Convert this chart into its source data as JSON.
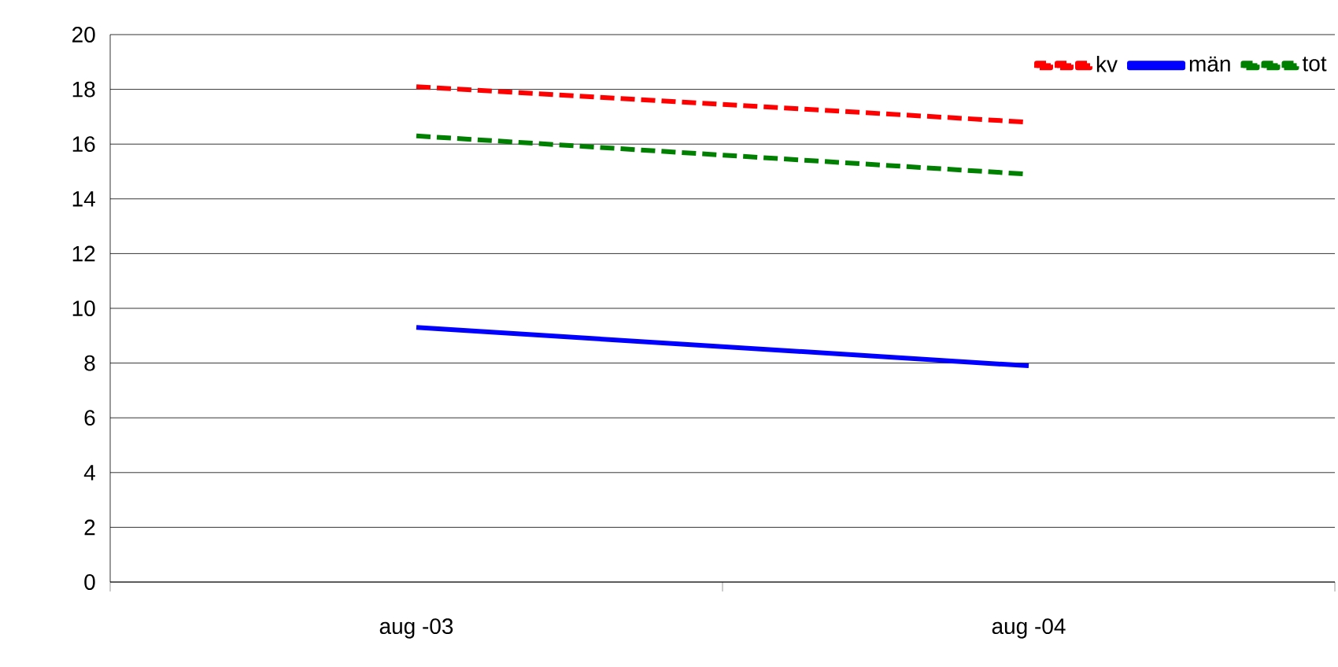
{
  "chart_data": {
    "type": "line",
    "categories": [
      "aug -03",
      "aug -04"
    ],
    "series": [
      {
        "name": "kv",
        "color": "#ff0000",
        "line_style": "dashed",
        "values": [
          18.1,
          16.8
        ]
      },
      {
        "name": "män",
        "color": "#0000ff",
        "line_style": "solid",
        "values": [
          9.3,
          7.9
        ]
      },
      {
        "name": "tot",
        "color": "#008000",
        "line_style": "dashed",
        "values": [
          16.3,
          14.9
        ]
      }
    ],
    "ylim": [
      0,
      20
    ],
    "yticks": [
      0,
      2,
      4,
      6,
      8,
      10,
      12,
      14,
      16,
      18,
      20
    ],
    "grid": "y",
    "legend": "top right",
    "marker": "none"
  }
}
